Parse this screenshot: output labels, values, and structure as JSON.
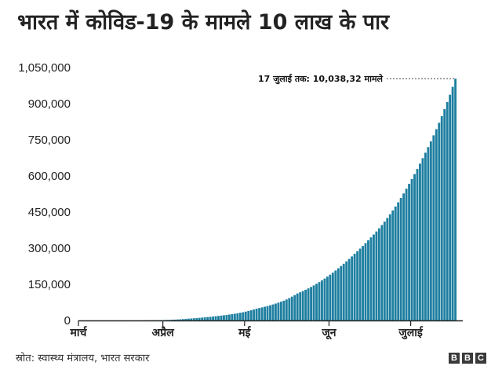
{
  "header": {
    "title": "भारत में कोविड-19 के मामले 10 लाख के पार"
  },
  "footer": {
    "source": "स्रोत: स्वास्थ्य मंत्रालय, भारत सरकार",
    "logo_letters": [
      "B",
      "B",
      "C"
    ]
  },
  "chart_data": {
    "type": "bar",
    "title": "भारत में कोविड-19 के मामले 10 लाख के पार",
    "xlabel": "",
    "ylabel": "",
    "ylim": [
      0,
      1050000
    ],
    "y_ticks": [
      0,
      150000,
      300000,
      450000,
      600000,
      750000,
      900000,
      1050000
    ],
    "y_tick_labels": [
      "0",
      "150,000",
      "300,000",
      "450,000",
      "600,000",
      "750,000",
      "900,000",
      "1,050,000"
    ],
    "x_ticks": [
      {
        "label": "मार्च",
        "date": "2020-03-01"
      },
      {
        "label": "अप्रैल",
        "date": "2020-04-01"
      },
      {
        "label": "मई",
        "date": "2020-05-01"
      },
      {
        "label": "जून",
        "date": "2020-06-01"
      },
      {
        "label": "जुलाई",
        "date": "2020-07-01"
      }
    ],
    "bar_color": "#1f7fa0",
    "annotation": {
      "text": "17 जुलाई तक: 10,038,32 मामले",
      "date": "2020-07-17",
      "value": 1003832
    },
    "series": [
      {
        "x": [
          "2020-03-01",
          "2020-03-10",
          "2020-03-20",
          "2020-03-31",
          "2020-04-05",
          "2020-04-10",
          "2020-04-15",
          "2020-04-20",
          "2020-04-25",
          "2020-04-30",
          "2020-05-05",
          "2020-05-10",
          "2020-05-15",
          "2020-05-20",
          "2020-05-25",
          "2020-05-31",
          "2020-06-05",
          "2020-06-10",
          "2020-06-15",
          "2020-06-20",
          "2020-06-25",
          "2020-06-30",
          "2020-07-05",
          "2020-07-10",
          "2020-07-15",
          "2020-07-17"
        ],
        "values": [
          3,
          44,
          223,
          1400,
          3600,
          7500,
          12000,
          17600,
          24500,
          34000,
          49000,
          63000,
          82000,
          112000,
          139000,
          182000,
          226000,
          277000,
          333000,
          396000,
          473000,
          567000,
          674000,
          794000,
          937000,
          1003832
        ]
      }
    ]
  }
}
